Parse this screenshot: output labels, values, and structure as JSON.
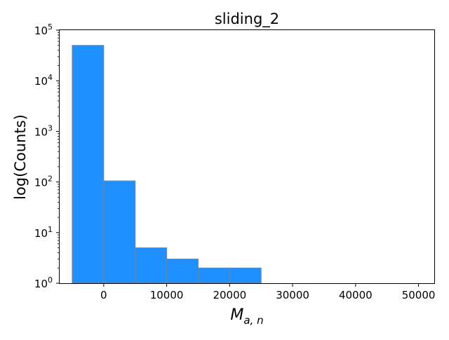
{
  "chart_data": {
    "type": "bar",
    "title": "sliding_2",
    "xlabel_main": "M",
    "xlabel_sub": "a, n",
    "ylabel": "log(Counts)",
    "yscale": "log",
    "xlim": [
      -7000,
      52500
    ],
    "ylim": [
      1,
      100000
    ],
    "x_ticks": [
      0,
      10000,
      20000,
      30000,
      40000,
      50000
    ],
    "y_ticks": [
      1,
      10,
      100,
      1000,
      10000,
      100000
    ],
    "y_tick_exponents": [
      "0",
      "1",
      "2",
      "3",
      "4",
      "5"
    ],
    "bins": [
      {
        "start": -5000,
        "end": 0,
        "count": 50000
      },
      {
        "start": 0,
        "end": 5000,
        "count": 105
      },
      {
        "start": 5000,
        "end": 10000,
        "count": 5
      },
      {
        "start": 10000,
        "end": 15000,
        "count": 3
      },
      {
        "start": 15000,
        "end": 20000,
        "count": 2
      },
      {
        "start": 20000,
        "end": 25000,
        "count": 2
      },
      {
        "start": 25000,
        "end": 30000,
        "count": 0
      },
      {
        "start": 30000,
        "end": 35000,
        "count": 0
      },
      {
        "start": 35000,
        "end": 40000,
        "count": 0
      },
      {
        "start": 40000,
        "end": 45000,
        "count": 0
      },
      {
        "start": 45000,
        "end": 50000,
        "count": 1
      }
    ],
    "bar_color": "#1e90ff",
    "edge_color": "#808080",
    "grid": false
  }
}
